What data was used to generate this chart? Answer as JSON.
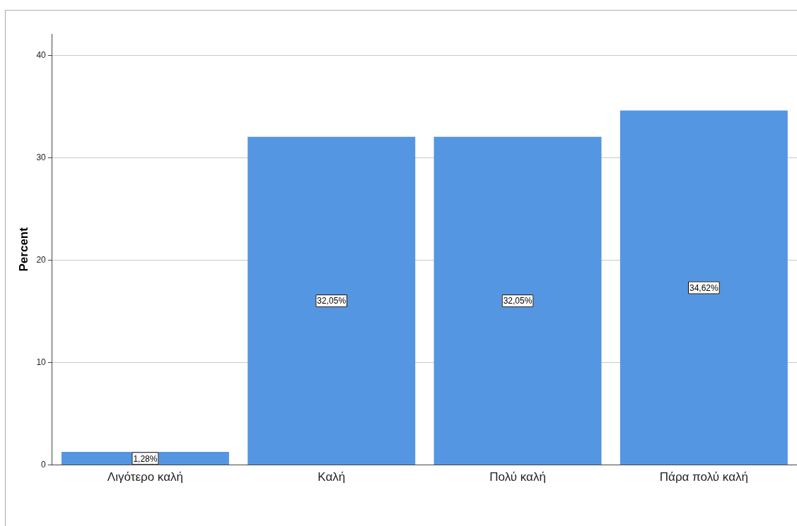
{
  "chart_data": {
    "type": "bar",
    "ylabel": "Percent",
    "categories": [
      "Λιγότερο καλή",
      "Καλή",
      "Πολύ καλή",
      "Πάρα πολύ καλή"
    ],
    "values": [
      1.28,
      32.05,
      32.05,
      34.62
    ],
    "value_labels": [
      "1,28%",
      "32,05%",
      "32,05%",
      "34,62%"
    ],
    "color": "#5596e3",
    "ylim": [
      0,
      42.1
    ],
    "yticks": [
      0,
      10,
      20,
      30,
      40
    ],
    "grid": "y",
    "legend": false
  }
}
